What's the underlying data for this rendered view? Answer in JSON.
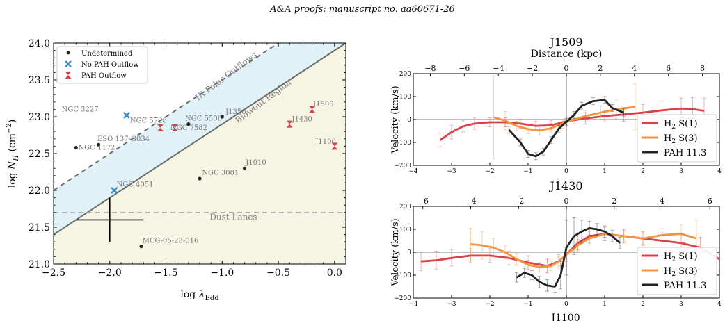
{
  "header": {
    "text": "A&A proofs: manuscript no. aa60671-26"
  },
  "chart_data": [
    {
      "type": "scatter",
      "xlabel": "log λ_Edd",
      "ylabel": "log N_H (cm^-2)",
      "xlim": [
        -2.5,
        0.1
      ],
      "ylim": [
        21.0,
        24.0
      ],
      "xticks": [
        "−2.5",
        "−2.0",
        "−1.5",
        "−1.0",
        "−0.5",
        "0.0"
      ],
      "xtick_values": [
        -2.5,
        -2.0,
        -1.5,
        -1.0,
        -0.5,
        0.0
      ],
      "yticks": [
        "21.0",
        "21.5",
        "22.0",
        "22.5",
        "23.0",
        "23.5",
        "24.0"
      ],
      "ytick_values": [
        21.0,
        21.5,
        22.0,
        22.5,
        23.0,
        23.5,
        24.0
      ],
      "legend_position": "top-left",
      "legend": [
        {
          "label": "Undetermined",
          "marker": "dot",
          "color": "#222222"
        },
        {
          "label": "No PAH Outflow",
          "marker": "x",
          "color": "#3b8ec9"
        },
        {
          "label": "PAH Outflow",
          "marker": "hourglass",
          "color": "#d9404a"
        }
      ],
      "region_labels": {
        "polar": "IR Polar Outflows",
        "blowout": "Blowout Region",
        "dust": "Dust Lanes"
      },
      "lines": {
        "solid_intercept": 23.9,
        "dashed_intercept": 24.5,
        "slope": 1.0,
        "dust_lane_y": 21.7
      },
      "colors": {
        "polar_fill": "#e0f2f7",
        "blowout_fill": "#f6f5e4",
        "line": "#6b6b6b"
      },
      "error_cross": {
        "x": -2.0,
        "y": 21.6,
        "dx": 0.3,
        "dy": 0.3
      },
      "points": [
        {
          "label": "NGC 3227",
          "x": -1.85,
          "y": 23.02,
          "group": "No PAH Outflow",
          "lx": -2.1,
          "ly": 23.07,
          "anchor": "end"
        },
        {
          "label": "NGC 4051",
          "x": -1.96,
          "y": 22.0,
          "group": "No PAH Outflow",
          "lx": -1.94,
          "ly": 22.05,
          "anchor": "start"
        },
        {
          "label": "NGC 5728",
          "x": -1.55,
          "y": 22.85,
          "group": "PAH Outflow",
          "lx": -1.82,
          "ly": 22.92,
          "anchor": "start"
        },
        {
          "label": "NGC 7582",
          "x": -1.42,
          "y": 22.85,
          "group": "PAH Outflow",
          "lx": -1.46,
          "ly": 22.82,
          "anchor": "start"
        },
        {
          "label": "J1509",
          "x": -0.2,
          "y": 23.1,
          "group": "PAH Outflow",
          "lx": -0.19,
          "ly": 23.14,
          "anchor": "start"
        },
        {
          "label": "J1430",
          "x": -0.4,
          "y": 22.9,
          "group": "PAH Outflow",
          "lx": -0.38,
          "ly": 22.94,
          "anchor": "start"
        },
        {
          "label": "J1100",
          "x": 0.0,
          "y": 22.6,
          "group": "PAH Outflow",
          "lx": -0.17,
          "ly": 22.63,
          "anchor": "start"
        },
        {
          "label": "NGC 5506",
          "x": -1.3,
          "y": 22.9,
          "group": "Undetermined",
          "lx": -1.33,
          "ly": 22.95,
          "anchor": "start"
        },
        {
          "label": "J1356",
          "x": -1.0,
          "y": 23.0,
          "group": "Undetermined",
          "lx": -0.97,
          "ly": 23.04,
          "anchor": "start"
        },
        {
          "label": "ESO 137-G034",
          "x": -2.1,
          "y": 22.62,
          "group": "Undetermined",
          "lx": -2.11,
          "ly": 22.67,
          "anchor": "start"
        },
        {
          "label": "NGC 1172",
          "x": -2.3,
          "y": 22.58,
          "group": "Undetermined",
          "lx": -2.28,
          "ly": 22.55,
          "anchor": "start"
        },
        {
          "label": "J1010",
          "x": -0.8,
          "y": 22.3,
          "group": "Undetermined",
          "lx": -0.79,
          "ly": 22.35,
          "anchor": "start"
        },
        {
          "label": "NGC 3081",
          "x": -1.2,
          "y": 22.16,
          "group": "Undetermined",
          "lx": -1.18,
          "ly": 22.21,
          "anchor": "start"
        },
        {
          "label": "MCG-05-23-016",
          "x": -1.72,
          "y": 21.24,
          "group": "Undetermined",
          "lx": -1.71,
          "ly": 21.29,
          "anchor": "start"
        }
      ]
    },
    {
      "type": "line",
      "title": "J1509",
      "top_axis_label": "Distance (kpc)",
      "ylabel": "Velocity (km/s)",
      "xlim": [
        -4,
        4
      ],
      "ylim": [
        -200,
        200
      ],
      "xticks": [
        "−4",
        "−3",
        "−2",
        "−1",
        "0",
        "1",
        "2",
        "3",
        "4"
      ],
      "xtick_values": [
        -4,
        -3,
        -2,
        -1,
        0,
        1,
        2,
        3,
        4
      ],
      "yticks": [
        "−200",
        "−100",
        "0",
        "100",
        "200"
      ],
      "ytick_values": [
        -200,
        -100,
        0,
        100,
        200
      ],
      "top_ticks": [
        "−8",
        "−6",
        "−4",
        "−2",
        "0",
        "2",
        "4",
        "6",
        "8"
      ],
      "top_tick_values": [
        -8,
        -6,
        -4,
        -2,
        0,
        2,
        4,
        6,
        8
      ],
      "top_scale": 2.25,
      "legend_position": "lower-right",
      "series": [
        {
          "name": "H$_2$ S(1)",
          "label": "H",
          "sub": "2",
          "suffix": " S(1)",
          "color": "#d9404a",
          "x": [
            -3.3,
            -3.0,
            -2.7,
            -2.4,
            -2.0,
            -1.6,
            -1.2,
            -0.8,
            -0.4,
            0.0,
            0.5,
            1.0,
            1.5,
            2.0,
            2.5,
            3.0,
            3.3,
            3.6
          ],
          "y": [
            -90,
            -55,
            -30,
            -18,
            -12,
            -12,
            -18,
            -28,
            -25,
            -8,
            5,
            15,
            22,
            30,
            40,
            48,
            45,
            38
          ],
          "err": [
            30,
            30,
            25,
            25,
            20,
            20,
            20,
            20,
            20,
            20,
            25,
            25,
            30,
            35,
            40,
            45,
            50,
            55
          ]
        },
        {
          "name": "H$_2$ S(3)",
          "label": "H",
          "sub": "2",
          "suffix": " S(3)",
          "color": "#f5923b",
          "x": [
            -1.9,
            -1.6,
            -1.3,
            -1.0,
            -0.7,
            -0.4,
            -0.1,
            0.2,
            0.5,
            0.9,
            1.3,
            1.8
          ],
          "y": [
            10,
            -5,
            -28,
            -42,
            -48,
            -38,
            -18,
            0,
            15,
            30,
            45,
            55
          ],
          "err": [
            180,
            40,
            20,
            20,
            20,
            20,
            20,
            20,
            25,
            30,
            40,
            100
          ]
        },
        {
          "name": "PAH 11.3",
          "label": "PAH 11.3",
          "sub": "",
          "suffix": "",
          "color": "#222222",
          "x": [
            -1.5,
            -1.2,
            -1.0,
            -0.8,
            -0.6,
            -0.4,
            -0.2,
            0.0,
            0.2,
            0.4,
            0.7,
            1.0,
            1.2,
            1.5
          ],
          "y": [
            -45,
            -100,
            -150,
            -160,
            -140,
            -90,
            -40,
            -10,
            20,
            60,
            80,
            85,
            50,
            30
          ],
          "err": [
            15,
            15,
            15,
            15,
            15,
            15,
            15,
            15,
            15,
            15,
            15,
            15,
            15,
            15
          ]
        }
      ]
    },
    {
      "type": "line",
      "title": "J1430",
      "ylabel": "Velocity (km/s)",
      "xlim": [
        -4,
        4
      ],
      "ylim": [
        -200,
        200
      ],
      "xticks": [
        "−4",
        "−3",
        "−2",
        "−1",
        "0",
        "1",
        "2",
        "3",
        "4"
      ],
      "xtick_values": [
        -4,
        -3,
        -2,
        -1,
        0,
        1,
        2,
        3,
        4
      ],
      "yticks": [
        "−200",
        "−100",
        "0",
        "100",
        "200"
      ],
      "ytick_values": [
        -200,
        -100,
        0,
        100,
        200
      ],
      "top_ticks": [
        "−6",
        "−4",
        "−2",
        "0",
        "2",
        "4",
        "6"
      ],
      "top_tick_values": [
        -6,
        -4,
        -2,
        0,
        2,
        4,
        6
      ],
      "top_scale": 1.6,
      "legend_position": "lower-right",
      "series": [
        {
          "name": "H$_2$ S(1)",
          "label": "H",
          "sub": "2",
          "suffix": " S(1)",
          "color": "#d9404a",
          "x": [
            -3.8,
            -3.4,
            -3.0,
            -2.5,
            -2.0,
            -1.5,
            -1.0,
            -0.5,
            -0.2,
            0.0,
            0.3,
            0.6,
            1.0,
            1.5,
            2.0,
            2.5,
            3.0,
            3.5,
            4.0
          ],
          "y": [
            -40,
            -35,
            -25,
            -15,
            -15,
            -25,
            -45,
            -60,
            -40,
            -10,
            40,
            70,
            80,
            70,
            60,
            50,
            40,
            20,
            -30
          ],
          "err": [
            40,
            40,
            35,
            30,
            30,
            30,
            30,
            30,
            30,
            30,
            30,
            30,
            30,
            30,
            30,
            35,
            40,
            45,
            50
          ]
        },
        {
          "name": "H$_2$ S(3)",
          "label": "H",
          "sub": "2",
          "suffix": " S(3)",
          "color": "#f5923b",
          "x": [
            -2.5,
            -2.2,
            -1.9,
            -1.6,
            -1.3,
            -1.0,
            -0.7,
            -0.4,
            -0.2,
            0.0,
            0.3,
            0.6,
            1.0,
            1.5,
            2.0,
            2.5,
            3.0,
            3.4
          ],
          "y": [
            35,
            30,
            20,
            0,
            -30,
            -55,
            -65,
            -60,
            -40,
            -10,
            30,
            60,
            80,
            70,
            60,
            75,
            80,
            60
          ],
          "err": [
            70,
            60,
            40,
            30,
            25,
            20,
            20,
            20,
            20,
            20,
            25,
            30,
            30,
            25,
            25,
            30,
            40,
            80
          ]
        },
        {
          "name": "PAH 11.3",
          "label": "PAH 11.3",
          "sub": "",
          "suffix": "",
          "color": "#222222",
          "x": [
            -1.3,
            -1.1,
            -0.9,
            -0.7,
            -0.5,
            -0.3,
            -0.15,
            0.0,
            0.2,
            0.4,
            0.6,
            0.8,
            1.0,
            1.2,
            1.4
          ],
          "y": [
            -110,
            -90,
            -100,
            -130,
            -145,
            -150,
            -100,
            20,
            70,
            90,
            105,
            100,
            90,
            70,
            40
          ],
          "err": [
            20,
            20,
            20,
            25,
            25,
            25,
            60,
            120,
            80,
            50,
            30,
            25,
            25,
            25,
            25
          ]
        }
      ]
    }
  ],
  "bottom_cut_title": "J1100"
}
